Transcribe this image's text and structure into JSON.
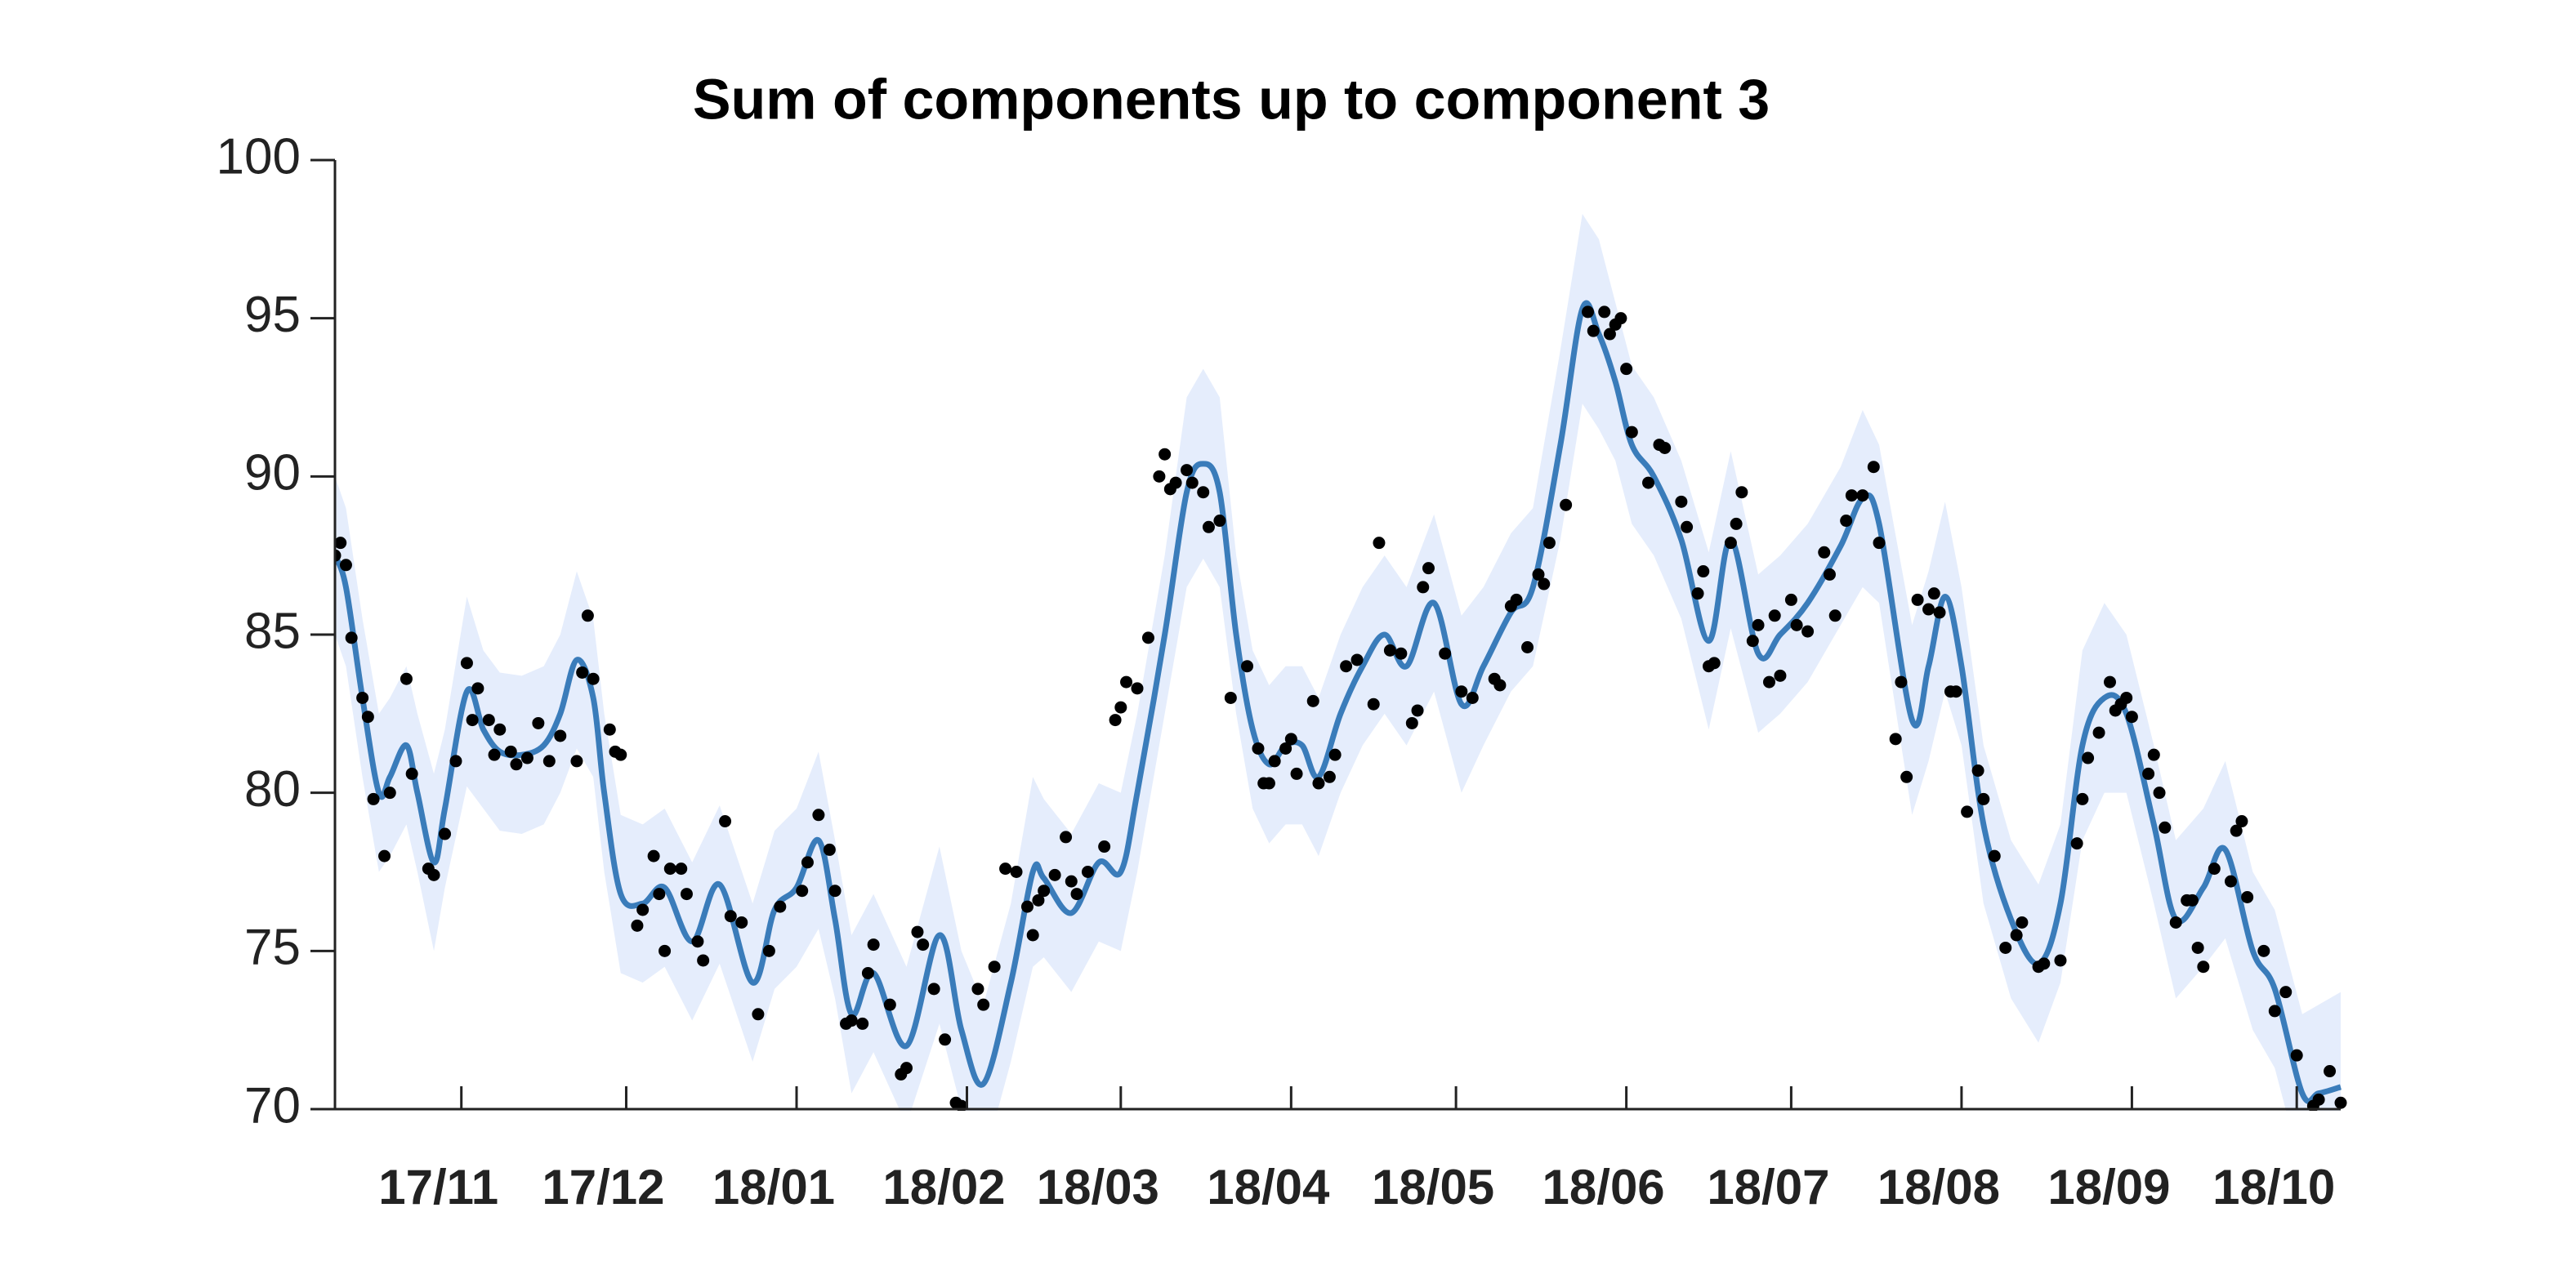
{
  "chart_data": {
    "type": "line",
    "title": "Sum of components up to component 3",
    "line_color": "#3a7cba",
    "band_color": "#e5edfc",
    "point_color": "#000000",
    "xlim": [
      0,
      365
    ],
    "ylim": [
      70,
      100
    ],
    "yticks": [
      70,
      75,
      80,
      85,
      90,
      95,
      100
    ],
    "xticks": [
      {
        "value": 23,
        "label": "17/11"
      },
      {
        "value": 53,
        "label": "17/12"
      },
      {
        "value": 84,
        "label": "18/01"
      },
      {
        "value": 115,
        "label": "18/02"
      },
      {
        "value": 143,
        "label": "18/03"
      },
      {
        "value": 174,
        "label": "18/04"
      },
      {
        "value": 204,
        "label": "18/05"
      },
      {
        "value": 235,
        "label": "18/06"
      },
      {
        "value": 265,
        "label": "18/07"
      },
      {
        "value": 296,
        "label": "18/08"
      },
      {
        "value": 327,
        "label": "18/09"
      },
      {
        "value": 357,
        "label": "18/10"
      }
    ],
    "x": [
      0,
      2,
      5,
      8,
      10,
      13,
      15,
      18,
      20,
      24,
      27,
      30,
      34,
      38,
      41,
      44,
      47,
      49,
      52,
      56,
      60,
      65,
      70,
      76,
      80,
      84,
      88,
      91,
      94,
      98,
      104,
      110,
      114,
      118,
      123,
      127,
      129,
      134,
      139,
      143,
      146,
      151,
      155,
      158,
      161,
      164,
      167,
      170,
      173,
      176,
      179,
      183,
      187,
      191,
      195,
      200,
      205,
      209,
      214,
      218,
      223,
      227,
      230,
      233,
      236,
      240,
      245,
      250,
      254,
      259,
      263,
      268,
      274,
      278,
      281,
      287,
      290,
      293,
      296,
      300,
      305,
      310,
      314,
      318,
      322,
      326,
      331,
      335,
      340,
      344,
      349,
      353,
      358,
      361,
      365
    ],
    "values": [
      87.5,
      86.5,
      83,
      80,
      80.5,
      81.5,
      80,
      77.8,
      79.5,
      83.2,
      82,
      81.3,
      81.2,
      81.5,
      82.5,
      84.2,
      83,
      80,
      76.8,
      76.5,
      77,
      75.3,
      77.1,
      74,
      76.3,
      77,
      78.5,
      76,
      73,
      74.3,
      72,
      75.5,
      72.5,
      70.8,
      74,
      77.5,
      77.3,
      76.2,
      77.8,
      77.5,
      80,
      85,
      89.5,
      90.4,
      89.5,
      85,
      82,
      80.9,
      81.5,
      81.5,
      80.5,
      82.5,
      84,
      85,
      84,
      86,
      82.8,
      84,
      85.7,
      86.5,
      91,
      95.3,
      94.5,
      93,
      91,
      90,
      88,
      84.8,
      88,
      84.4,
      85,
      86,
      87.8,
      89.3,
      88.5,
      82.3,
      84,
      86.2,
      84,
      79,
      76,
      74.6,
      76.5,
      81.5,
      83,
      82.5,
      79,
      76,
      77,
      78.2,
      75,
      73.8,
      70.5,
      70.5,
      70.7
    ],
    "band": [
      2.5,
      2.5,
      2.5,
      2.5,
      2.5,
      2.5,
      2.5,
      2.8,
      2.5,
      3,
      2.5,
      2.5,
      2.5,
      2.5,
      2.5,
      2.8,
      2.5,
      2.5,
      2.5,
      2.5,
      2.5,
      2.5,
      2.5,
      2.5,
      2.5,
      2.5,
      2.8,
      2.5,
      2.5,
      2.5,
      2.5,
      2.8,
      2.5,
      2.5,
      2.5,
      3,
      2.5,
      2.5,
      2.5,
      2.5,
      2.5,
      2.5,
      3,
      3,
      3,
      2.5,
      2.5,
      2.5,
      2.5,
      2.5,
      2.5,
      2.5,
      2.5,
      2.5,
      2.5,
      2.8,
      2.8,
      2.5,
      2.5,
      2.5,
      3,
      3,
      3,
      2.5,
      2.5,
      2.5,
      2.5,
      2.8,
      2.8,
      2.5,
      2.5,
      2.5,
      2.5,
      2.8,
      2.5,
      3,
      3,
      3,
      2.5,
      2.5,
      2.5,
      2.5,
      2.5,
      3,
      3,
      2.5,
      2.5,
      2.5,
      2.5,
      2.8,
      2.5,
      2.5,
      2.5,
      2.8,
      3
    ],
    "points": {
      "x": [
        0,
        1,
        2,
        3,
        5,
        6,
        7,
        9,
        10,
        13,
        14,
        17,
        18,
        20,
        22,
        24,
        25,
        26,
        28,
        29,
        30,
        32,
        33,
        35,
        37,
        39,
        41,
        44,
        45,
        46,
        47,
        50,
        51,
        52,
        55,
        56,
        58,
        59,
        60,
        61,
        63,
        64,
        66,
        67,
        71,
        72,
        74,
        77,
        79,
        81,
        85,
        86,
        88,
        90,
        91,
        93,
        94,
        96,
        97,
        98,
        101,
        103,
        104,
        106,
        107,
        109,
        111,
        113,
        114,
        117,
        118,
        120,
        122,
        124,
        126,
        127,
        128,
        129,
        131,
        133,
        134,
        135,
        137,
        140,
        142,
        143,
        144,
        146,
        148,
        150,
        151,
        152,
        153,
        155,
        156,
        158,
        159,
        161,
        163,
        166,
        168,
        169,
        170,
        171,
        173,
        174,
        175,
        178,
        179,
        181,
        182,
        184,
        186,
        189,
        190,
        192,
        194,
        196,
        197,
        198,
        199,
        202,
        205,
        207,
        211,
        212,
        214,
        215,
        217,
        219,
        220,
        221,
        224,
        228,
        229,
        231,
        232,
        233,
        234,
        235,
        236,
        239,
        241,
        242,
        245,
        246,
        248,
        249,
        250,
        251,
        254,
        255,
        256,
        258,
        259,
        261,
        262,
        263,
        265,
        266,
        268,
        271,
        272,
        273,
        275,
        276,
        278,
        280,
        281,
        284,
        285,
        286,
        288,
        290,
        291,
        292,
        294,
        295,
        297,
        299,
        300,
        302,
        304,
        306,
        307,
        310,
        311,
        314,
        317,
        318,
        319,
        321,
        323,
        324,
        325,
        326,
        327,
        330,
        331,
        332,
        333,
        335,
        337,
        338,
        339,
        340,
        342,
        345,
        346,
        347,
        348,
        351,
        353,
        355,
        357,
        360,
        361,
        363,
        365
      ],
      "y": [
        87.5,
        87.9,
        87.2,
        84.9,
        83,
        82.4,
        79.8,
        78,
        80,
        83.6,
        80.6,
        77.6,
        77.4,
        78.7,
        81,
        84.1,
        82.3,
        83.3,
        82.3,
        81.2,
        82,
        81.3,
        80.9,
        81.1,
        82.2,
        81,
        81.8,
        81,
        83.8,
        85.6,
        83.6,
        82,
        81.3,
        81.2,
        75.8,
        76.3,
        78,
        76.8,
        75,
        77.6,
        77.6,
        76.8,
        75.3,
        74.7,
        79.1,
        76.1,
        75.9,
        73,
        75,
        76.4,
        76.9,
        77.8,
        79.3,
        78.2,
        76.9,
        72.7,
        72.8,
        72.7,
        74.3,
        75.2,
        73.3,
        71.1,
        71.3,
        75.6,
        75.2,
        73.8,
        72.2,
        70.2,
        70.1,
        73.8,
        73.3,
        74.5,
        77.6,
        77.5,
        76.4,
        75.5,
        76.6,
        76.9,
        77.4,
        78.6,
        77.2,
        76.8,
        77.5,
        78.3,
        82.3,
        82.7,
        83.5,
        83.3,
        84.9,
        90,
        90.7,
        89.6,
        89.8,
        90.2,
        89.8,
        89.5,
        88.4,
        88.6,
        83,
        84,
        81.4,
        80.3,
        80.3,
        81,
        81.4,
        81.7,
        80.6,
        82.9,
        80.3,
        80.5,
        81.2,
        84,
        84.2,
        82.8,
        87.9,
        84.5,
        84.4,
        82.2,
        82.6,
        86.5,
        87.1,
        84.4,
        83.2,
        83,
        83.6,
        83.4,
        85.9,
        86.1,
        84.6,
        86.9,
        86.6,
        87.9,
        89.1,
        95.2,
        94.6,
        95.2,
        94.5,
        94.8,
        95,
        93.4,
        91.4,
        89.8,
        91,
        90.9,
        89.2,
        88.4,
        86.3,
        87,
        84,
        84.1,
        87.9,
        88.5,
        89.5,
        84.8,
        85.3,
        83.5,
        85.6,
        83.7,
        86.1,
        85.3,
        85.1,
        87.6,
        86.9,
        85.6,
        88.6,
        89.4,
        89.4,
        90.3,
        87.9,
        81.7,
        83.5,
        80.5,
        86.1,
        85.8,
        86.3,
        85.7,
        83.2,
        83.2,
        79.4,
        80.7,
        79.8,
        78,
        75.1,
        75.5,
        75.9,
        74.5,
        74.6,
        74.7,
        78.4,
        79.8,
        81.1,
        81.9,
        83.5,
        82.6,
        82.8,
        83,
        82.4,
        80.6,
        81.2,
        80,
        78.9,
        75.9,
        76.6,
        76.6,
        75.1,
        74.5,
        77.6,
        77.2,
        78.8,
        79.1,
        76.7,
        75,
        73.1,
        73.7,
        71.7,
        70.1,
        70.3,
        71.2,
        70.2
      ]
    }
  }
}
